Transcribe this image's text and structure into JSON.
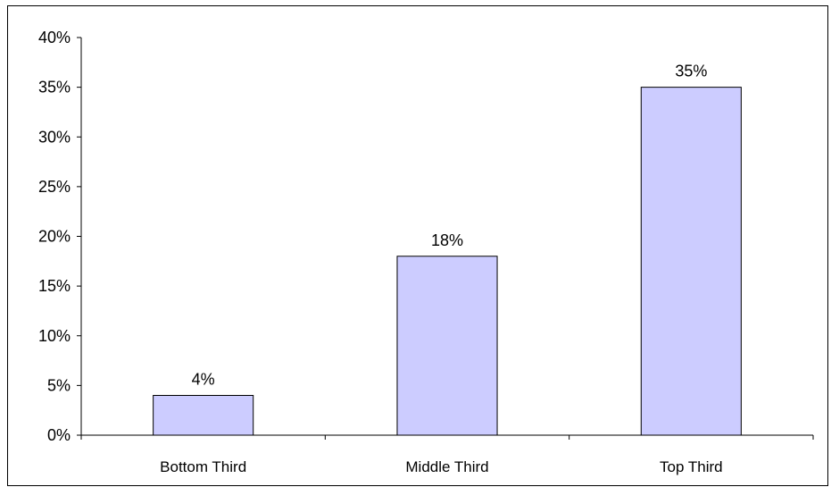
{
  "chart_data": {
    "type": "bar",
    "categories": [
      "Bottom Third",
      "Middle Third",
      "Top Third"
    ],
    "values": [
      4,
      18,
      35
    ],
    "value_labels": [
      "4%",
      "18%",
      "35%"
    ],
    "y_ticks": [
      0,
      5,
      10,
      15,
      20,
      25,
      30,
      35,
      40
    ],
    "y_tick_labels": [
      "0%",
      "5%",
      "10%",
      "15%",
      "20%",
      "25%",
      "30%",
      "35%",
      "40%"
    ],
    "ylim": [
      0,
      40
    ],
    "grid": false,
    "legend": "none",
    "bar_color": "#ccccff",
    "bar_border_color": "#000000"
  }
}
